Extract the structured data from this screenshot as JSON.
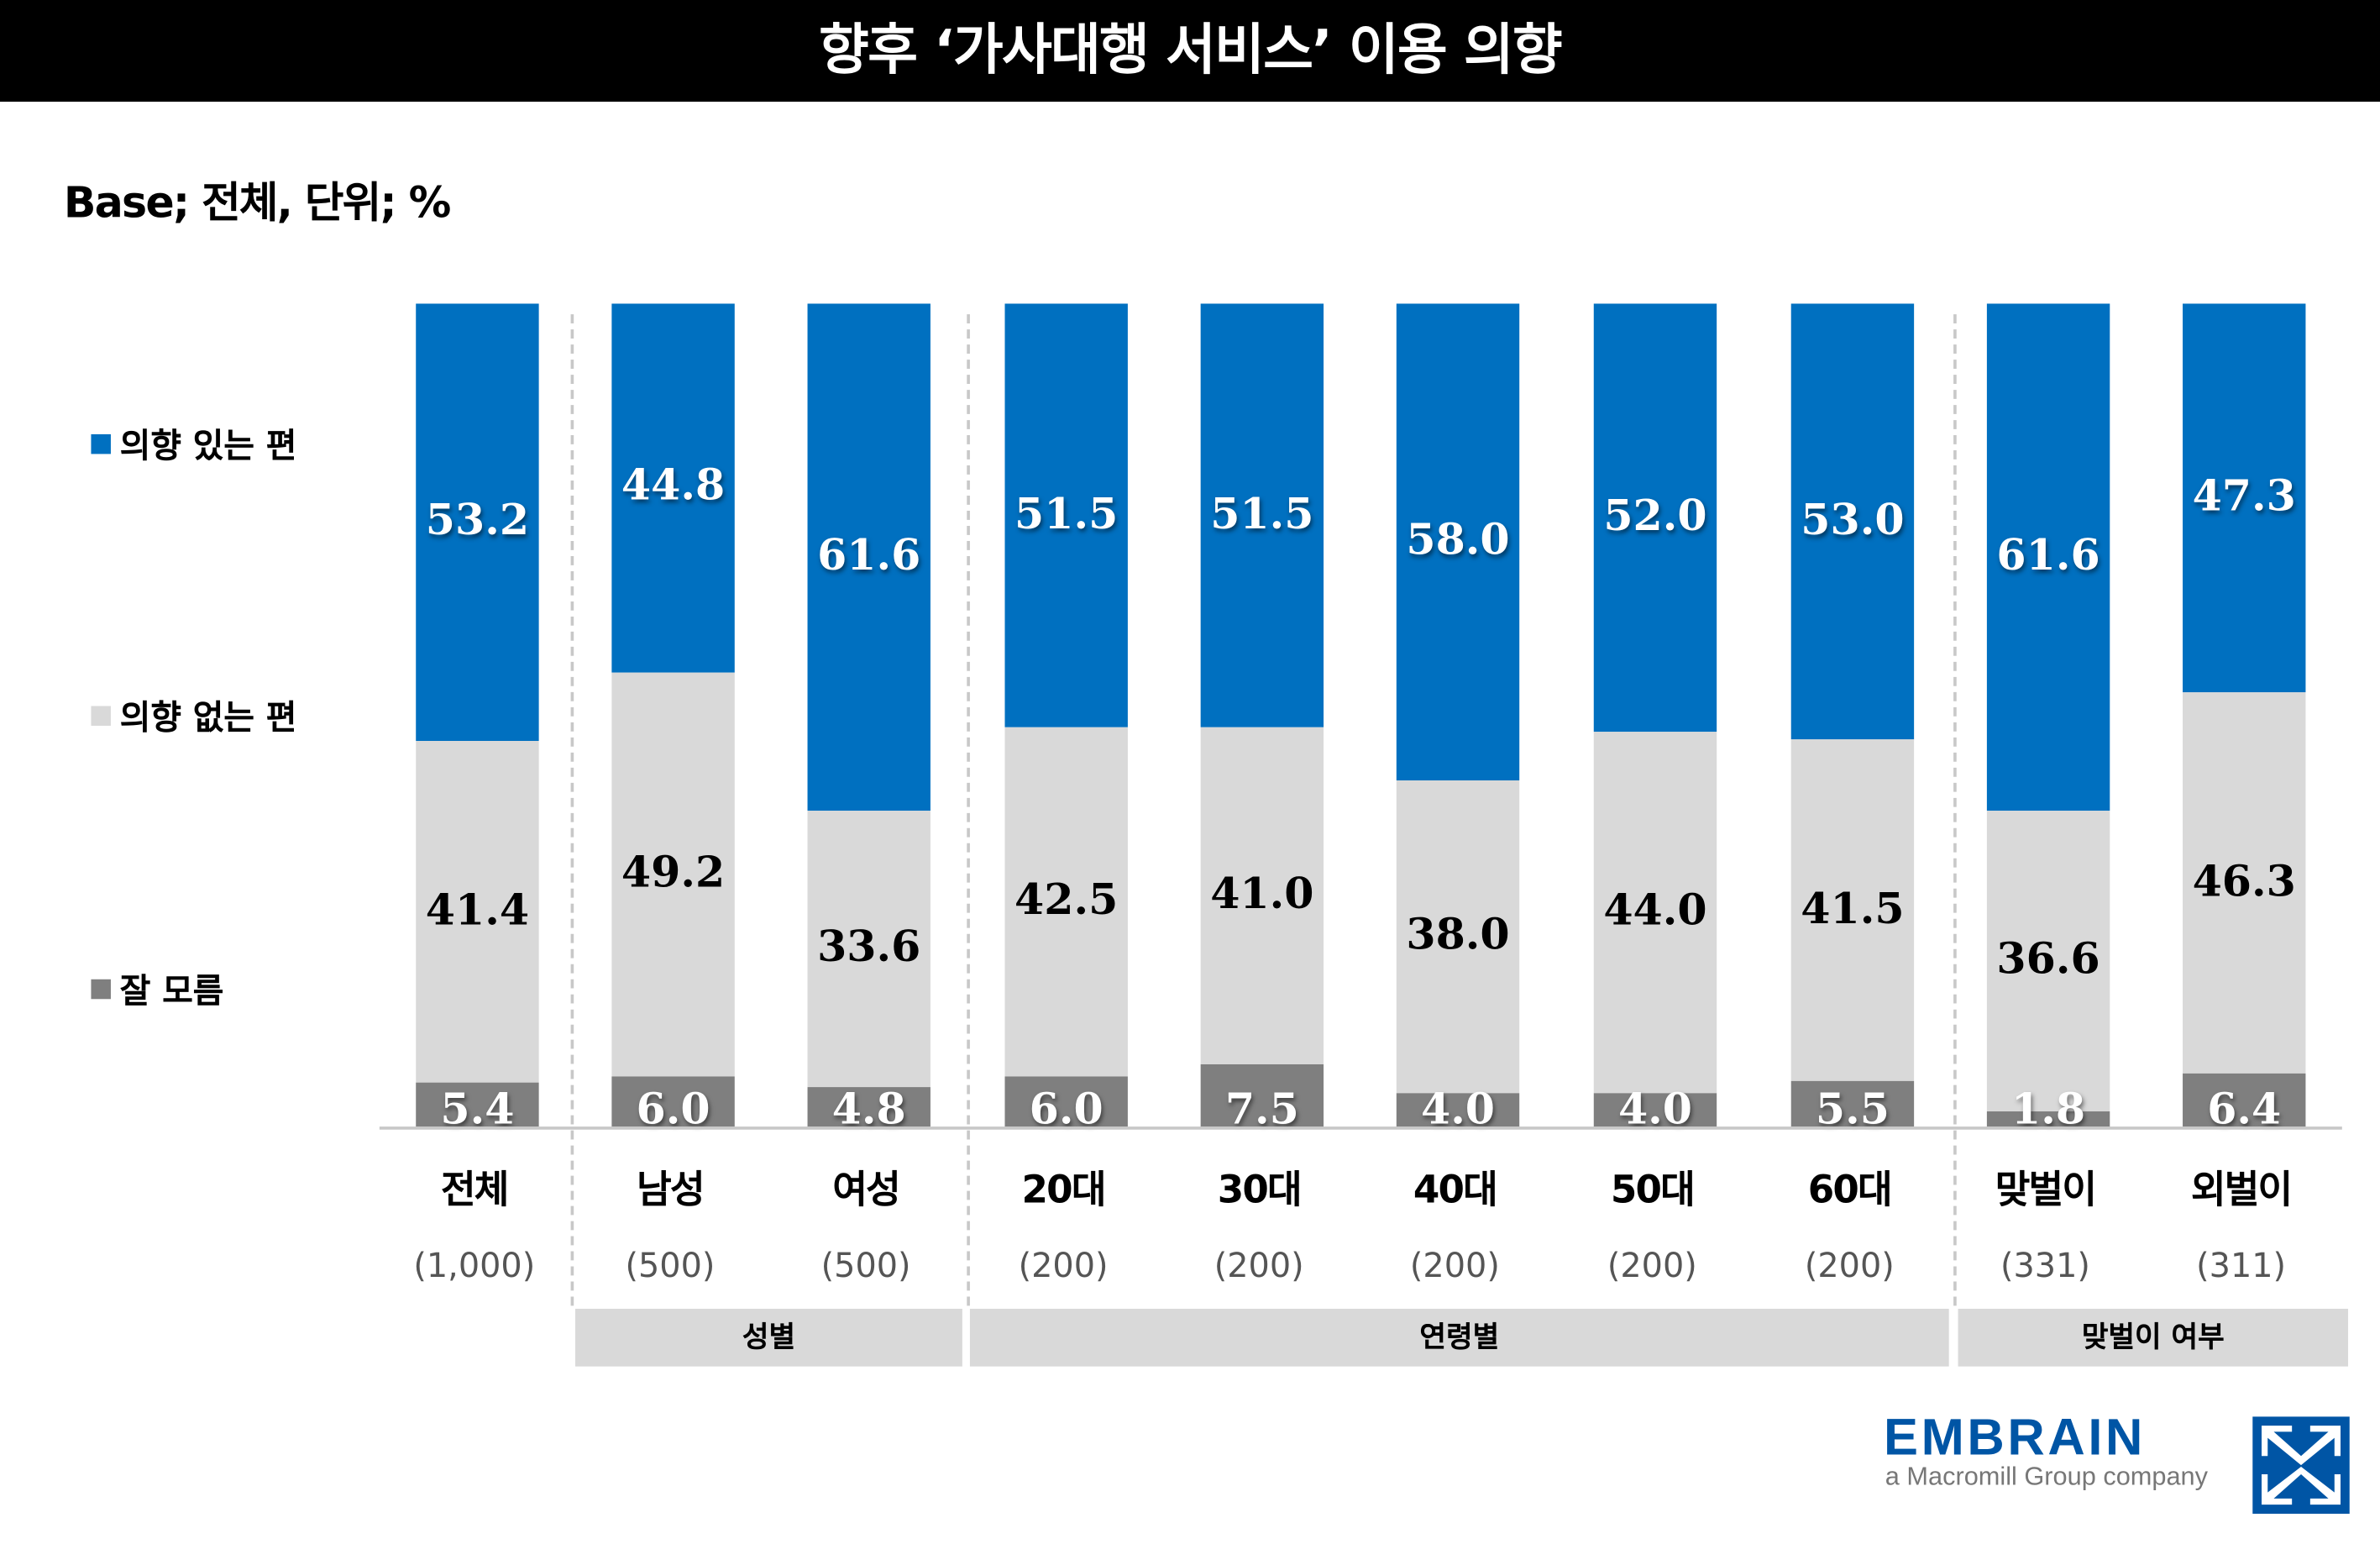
{
  "title": "향후 ‘가사대행 서비스’ 이용 의향",
  "base_note": "Base; 전체, 단위; %",
  "colors": {
    "intend": "#0070c0",
    "no_intend": "#d9d9d9",
    "dont_know": "#7f7f7f"
  },
  "chart_data": {
    "type": "bar",
    "stacked": true,
    "title": "향후 ‘가사대행 서비스’ 이용 의향",
    "ylim": [
      0,
      100
    ],
    "legend_position": "left",
    "categories": [
      "전체",
      "남성",
      "여성",
      "20대",
      "30대",
      "40대",
      "50대",
      "60대",
      "맞벌이",
      "외벌이"
    ],
    "counts": [
      "(1,000)",
      "(500)",
      "(500)",
      "(200)",
      "(200)",
      "(200)",
      "(200)",
      "(200)",
      "(331)",
      "(311)"
    ],
    "groups": [
      {
        "label": "성별"
      },
      {
        "label": "연령별"
      },
      {
        "label": "맞벌이 여부"
      }
    ],
    "series": [
      {
        "name": "의향 있는 편",
        "values": [
          53.2,
          44.8,
          61.6,
          51.5,
          51.5,
          58.0,
          52.0,
          53.0,
          61.6,
          47.3
        ]
      },
      {
        "name": "의향 없는 편",
        "values": [
          41.4,
          49.2,
          33.6,
          42.5,
          41.0,
          38.0,
          44.0,
          41.5,
          36.6,
          46.3
        ]
      },
      {
        "name": "잘 모름",
        "values": [
          5.4,
          6.0,
          4.8,
          6.0,
          7.5,
          4.0,
          4.0,
          5.5,
          1.8,
          6.4
        ]
      }
    ]
  },
  "logo": {
    "name": "EMBRAIN",
    "tagline": "a Macromill Group company"
  }
}
